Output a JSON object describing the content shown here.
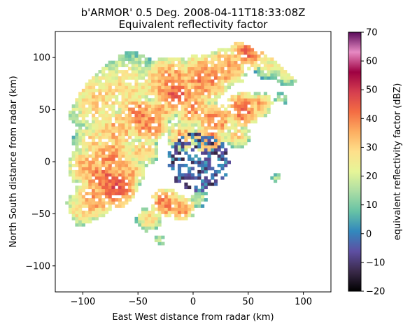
{
  "chart_data": {
    "type": "heatmap",
    "title": "b'ARMOR' 0.5 Deg. 2008-04-11T18:33:08Z",
    "subtitle": "Equivalent reflectivity factor",
    "xlabel": "East West distance from radar (km)",
    "ylabel": "North South distance from radar (km)",
    "xlim": [
      -125,
      125
    ],
    "ylim": [
      -125,
      125
    ],
    "xticks": [
      -100,
      -50,
      0,
      50,
      100
    ],
    "yticks": [
      -100,
      -50,
      0,
      50,
      100
    ],
    "xtick_labels": [
      "−100",
      "−50",
      "0",
      "50",
      "100"
    ],
    "ytick_labels": [
      "−100",
      "−50",
      "0",
      "50",
      "100"
    ],
    "grid": false,
    "colorbar": {
      "label": "equivalent reflectivity factor (dBZ)",
      "range": [
        -20,
        70
      ],
      "ticks": [
        -20,
        -10,
        0,
        10,
        20,
        30,
        40,
        50,
        60,
        70
      ],
      "tick_labels": [
        "−20",
        "−10",
        "0",
        "10",
        "20",
        "30",
        "40",
        "50",
        "60",
        "70"
      ],
      "colormap": [
        "#000000",
        "#3a2a4a",
        "#5e4fa2",
        "#3288bd",
        "#66c2a5",
        "#abdda4",
        "#e6f598",
        "#fee08b",
        "#fdae61",
        "#f46d43",
        "#d53e4f",
        "#9e0142",
        "#e78ac3",
        "#5a0a5a"
      ]
    },
    "echo_cells": [
      {
        "x": -85,
        "y": 60,
        "r": 28,
        "dbz": 30
      },
      {
        "x": -60,
        "y": 70,
        "r": 30,
        "dbz": 28
      },
      {
        "x": -20,
        "y": 75,
        "r": 22,
        "dbz": 38
      },
      {
        "x": -15,
        "y": 65,
        "r": 14,
        "dbz": 45
      },
      {
        "x": 10,
        "y": 80,
        "r": 20,
        "dbz": 40
      },
      {
        "x": 30,
        "y": 90,
        "r": 16,
        "dbz": 38
      },
      {
        "x": 50,
        "y": 105,
        "r": 14,
        "dbz": 42
      },
      {
        "x": 70,
        "y": 95,
        "r": 14,
        "dbz": 25
      },
      {
        "x": 85,
        "y": 85,
        "r": 10,
        "dbz": 25
      },
      {
        "x": -50,
        "y": 45,
        "r": 14,
        "dbz": 42
      },
      {
        "x": -40,
        "y": 35,
        "r": 14,
        "dbz": 40
      },
      {
        "x": -70,
        "y": 30,
        "r": 18,
        "dbz": 35
      },
      {
        "x": -90,
        "y": 20,
        "r": 16,
        "dbz": 30
      },
      {
        "x": -75,
        "y": 5,
        "r": 18,
        "dbz": 38
      },
      {
        "x": -95,
        "y": -5,
        "r": 16,
        "dbz": 36
      },
      {
        "x": -80,
        "y": -15,
        "r": 18,
        "dbz": 42
      },
      {
        "x": -70,
        "y": -25,
        "r": 16,
        "dbz": 45
      },
      {
        "x": -90,
        "y": -35,
        "r": 16,
        "dbz": 38
      },
      {
        "x": -100,
        "y": -45,
        "r": 14,
        "dbz": 30
      },
      {
        "x": -60,
        "y": -10,
        "r": 14,
        "dbz": 35
      },
      {
        "x": -45,
        "y": 10,
        "r": 12,
        "dbz": 32
      },
      {
        "x": -30,
        "y": 50,
        "r": 12,
        "dbz": 35
      },
      {
        "x": 0,
        "y": 50,
        "r": 14,
        "dbz": 38
      },
      {
        "x": 20,
        "y": 40,
        "r": 14,
        "dbz": 40
      },
      {
        "x": 45,
        "y": 50,
        "r": 14,
        "dbz": 42
      },
      {
        "x": 60,
        "y": 55,
        "r": 10,
        "dbz": 35
      },
      {
        "x": -10,
        "y": 25,
        "r": 12,
        "dbz": 35
      },
      {
        "x": 15,
        "y": 22,
        "r": 12,
        "dbz": 40
      },
      {
        "x": 40,
        "y": 25,
        "r": 10,
        "dbz": 30
      },
      {
        "x": -25,
        "y": -40,
        "r": 12,
        "dbz": 40
      },
      {
        "x": -10,
        "y": -45,
        "r": 10,
        "dbz": 38
      },
      {
        "x": 5,
        "y": -35,
        "r": 8,
        "dbz": 20
      },
      {
        "x": -40,
        "y": -55,
        "r": 10,
        "dbz": 30
      },
      {
        "x": 80,
        "y": 60,
        "r": 6,
        "dbz": 20
      },
      {
        "x": 75,
        "y": -15,
        "r": 5,
        "dbz": 15
      },
      {
        "x": -30,
        "y": -75,
        "r": 5,
        "dbz": 20
      }
    ],
    "clutter_zone": {
      "x": 5,
      "y": 0,
      "r": 28,
      "dbz": -5
    }
  }
}
